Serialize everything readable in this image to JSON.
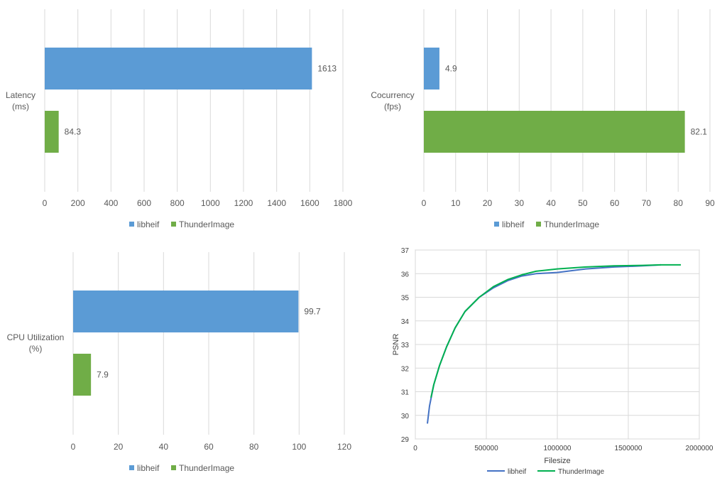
{
  "colors": {
    "libheif": "#5b9bd5",
    "thunder": "#70ad47",
    "grid": "#d9d9d9",
    "text": "#595959",
    "line_libheif": "#4472c4",
    "line_thunder": "#00b050"
  },
  "chart_data": [
    {
      "type": "bar",
      "orientation": "horizontal",
      "ylabel_lines": [
        "Latency",
        "(ms)"
      ],
      "series": [
        {
          "name": "libheif",
          "value": 1613,
          "label": "1613"
        },
        {
          "name": "ThunderImage",
          "value": 84.3,
          "label": "84.3"
        }
      ],
      "xticks": [
        "0",
        "200",
        "400",
        "600",
        "800",
        "1000",
        "1200",
        "1400",
        "1600",
        "1800"
      ],
      "xlim": [
        0,
        1800
      ],
      "grid": true,
      "legend": "bottom",
      "legend_entries": [
        "libheif",
        "ThunderImage"
      ]
    },
    {
      "type": "bar",
      "orientation": "horizontal",
      "ylabel_lines": [
        "Cocurrency",
        "(fps)"
      ],
      "series": [
        {
          "name": "libheif",
          "value": 4.9,
          "label": "4.9"
        },
        {
          "name": "ThunderImage",
          "value": 82.1,
          "label": "82.1"
        }
      ],
      "xticks": [
        "0",
        "10",
        "20",
        "30",
        "40",
        "50",
        "60",
        "70",
        "80",
        "90"
      ],
      "xlim": [
        0,
        90
      ],
      "grid": true,
      "legend": "bottom",
      "legend_entries": [
        "libheif",
        "ThunderImage"
      ]
    },
    {
      "type": "bar",
      "orientation": "horizontal",
      "ylabel_lines": [
        "CPU Utilization",
        "(%)"
      ],
      "series": [
        {
          "name": "libheif",
          "value": 99.7,
          "label": "99.7"
        },
        {
          "name": "ThunderImage",
          "value": 7.9,
          "label": "7.9"
        }
      ],
      "xticks": [
        "0",
        "20",
        "40",
        "60",
        "80",
        "100",
        "120"
      ],
      "xlim": [
        0,
        120
      ],
      "grid": true,
      "legend": "bottom",
      "legend_entries": [
        "libheif",
        "ThunderImage"
      ]
    },
    {
      "type": "line",
      "xlabel": "Filesize",
      "ylabel": "PSNR",
      "xticks": [
        "0",
        "500000",
        "1000000",
        "1500000",
        "2000000"
      ],
      "yticks": [
        "29",
        "30",
        "31",
        "32",
        "33",
        "34",
        "35",
        "36",
        "37"
      ],
      "xlim": [
        0,
        2000000
      ],
      "ylim": [
        29,
        37
      ],
      "grid": true,
      "legend": "bottom",
      "series": [
        {
          "name": "libheif",
          "x": [
            85000,
            100000,
            130000,
            170000,
            220000,
            280000,
            350000,
            450000,
            550000,
            650000,
            750000,
            850000,
            1000000,
            1200000,
            1400000,
            1600000,
            1730000
          ],
          "y": [
            29.65,
            30.4,
            31.3,
            32.1,
            32.9,
            33.7,
            34.4,
            35.0,
            35.4,
            35.7,
            35.9,
            36.0,
            36.05,
            36.2,
            36.28,
            36.33,
            36.37
          ]
        },
        {
          "name": "ThunderImage",
          "x": [
            110000,
            130000,
            170000,
            220000,
            280000,
            350000,
            450000,
            550000,
            650000,
            750000,
            850000,
            1000000,
            1200000,
            1400000,
            1600000,
            1730000,
            1870000
          ],
          "y": [
            30.75,
            31.3,
            32.1,
            32.9,
            33.7,
            34.4,
            35.0,
            35.45,
            35.75,
            35.95,
            36.1,
            36.2,
            36.28,
            36.33,
            36.35,
            36.37,
            36.37
          ]
        }
      ]
    }
  ]
}
